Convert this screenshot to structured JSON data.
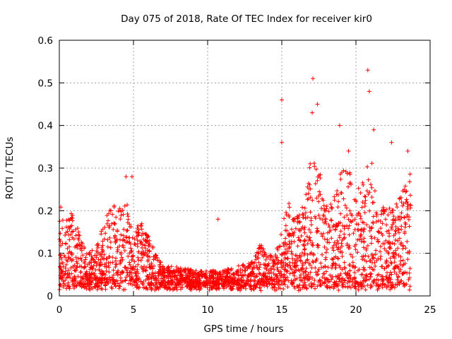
{
  "chart_data": {
    "type": "scatter",
    "title": "Day 075 of 2018, Rate Of TEC Index for receiver kir0",
    "xlabel": "GPS time / hours",
    "ylabel": "ROTI / TECUs",
    "xlim": [
      0,
      25
    ],
    "ylim": [
      0,
      0.6
    ],
    "xticks": [
      0,
      5,
      10,
      15,
      20,
      25
    ],
    "yticks": [
      0,
      0.1,
      0.2,
      0.3,
      0.4,
      0.5,
      0.6
    ],
    "xtick_labels": [
      "0",
      "5",
      "10",
      "15",
      "20",
      "25"
    ],
    "ytick_labels": [
      "0",
      "0.1",
      "0.2",
      "0.3",
      "0.4",
      "0.5",
      "0.6"
    ],
    "grid": true,
    "marker": "+",
    "color": "#ff0000",
    "envelope": {
      "description": "approximate upper envelope of ROTI (TECU/min) vs GPS hour; dense red '+' markers fill 0 up to this envelope",
      "x": [
        0,
        0.2,
        0.5,
        1.0,
        1.5,
        2.0,
        2.5,
        3.0,
        3.5,
        4.0,
        4.5,
        4.8,
        5.0,
        5.5,
        6.0,
        6.5,
        7.0,
        8.0,
        9.0,
        10.0,
        11.0,
        12.0,
        13.0,
        13.5,
        14.0,
        14.5,
        15.0,
        15.5,
        16.0,
        16.5,
        17.0,
        17.5,
        18.0,
        18.5,
        19.0,
        19.5,
        20.0,
        20.5,
        21.0,
        21.5,
        22.0,
        22.5,
        23.0,
        23.5,
        23.7
      ],
      "y": [
        0.23,
        0.2,
        0.2,
        0.19,
        0.14,
        0.1,
        0.12,
        0.17,
        0.22,
        0.2,
        0.24,
        0.17,
        0.16,
        0.18,
        0.14,
        0.1,
        0.07,
        0.07,
        0.06,
        0.06,
        0.06,
        0.07,
        0.08,
        0.13,
        0.1,
        0.09,
        0.17,
        0.22,
        0.19,
        0.22,
        0.33,
        0.3,
        0.22,
        0.23,
        0.3,
        0.3,
        0.24,
        0.3,
        0.33,
        0.21,
        0.21,
        0.22,
        0.24,
        0.28,
        0.29
      ]
    },
    "annotated_spikes": [
      {
        "x": 4.5,
        "y": 0.28
      },
      {
        "x": 4.9,
        "y": 0.28
      },
      {
        "x": 10.7,
        "y": 0.18
      },
      {
        "x": 15.0,
        "y": 0.46
      },
      {
        "x": 15.0,
        "y": 0.36
      },
      {
        "x": 17.1,
        "y": 0.51
      },
      {
        "x": 17.05,
        "y": 0.43
      },
      {
        "x": 17.4,
        "y": 0.45
      },
      {
        "x": 18.9,
        "y": 0.4
      },
      {
        "x": 19.5,
        "y": 0.34
      },
      {
        "x": 20.8,
        "y": 0.53
      },
      {
        "x": 20.9,
        "y": 0.48
      },
      {
        "x": 21.2,
        "y": 0.39
      },
      {
        "x": 22.4,
        "y": 0.36
      },
      {
        "x": 23.5,
        "y": 0.34
      }
    ]
  }
}
